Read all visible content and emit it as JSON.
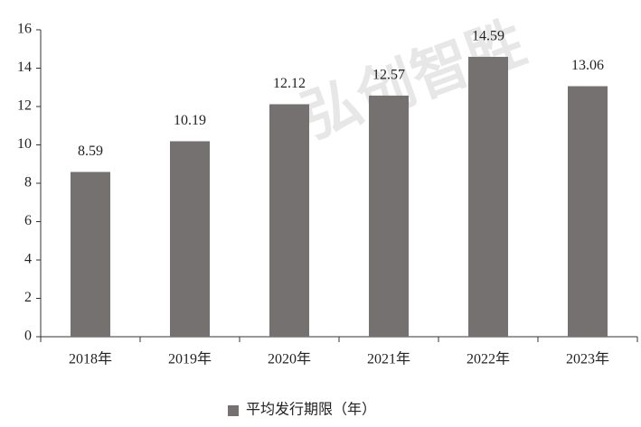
{
  "chart_data": {
    "type": "bar",
    "categories": [
      "2018年",
      "2019年",
      "2020年",
      "2021年",
      "2022年",
      "2023年"
    ],
    "series": [
      {
        "name": "平均发行期限（年）",
        "color": "#767171",
        "values": [
          8.59,
          10.19,
          12.12,
          12.57,
          14.59,
          13.06
        ]
      }
    ],
    "ylim": [
      0,
      16
    ],
    "yticks": [
      0,
      2,
      4,
      6,
      8,
      10,
      12,
      14,
      16
    ],
    "legend": "bottom",
    "watermark": "弘创智胜"
  }
}
